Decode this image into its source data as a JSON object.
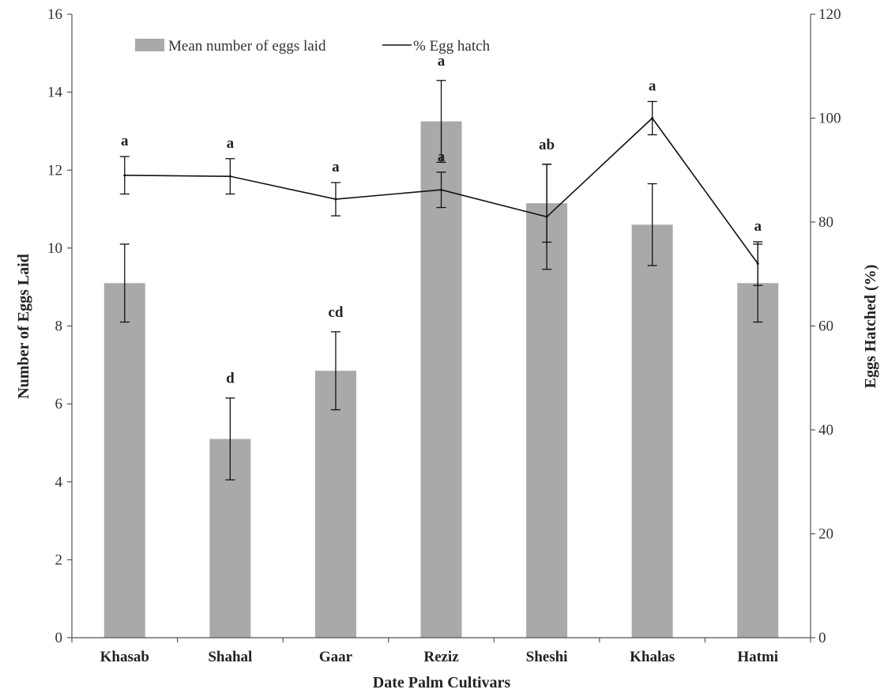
{
  "chart_data": {
    "type": "bar",
    "categories": [
      "Khasab",
      "Shahal",
      "Gaar",
      "Reziz",
      "Sheshi",
      "Khalas",
      "Hatmi"
    ],
    "series": [
      {
        "name": "Mean number of eggs laid",
        "type": "bar",
        "axis": "left",
        "values": [
          9.1,
          5.1,
          6.85,
          13.25,
          11.15,
          10.6,
          9.1
        ],
        "error": [
          1.0,
          1.05,
          1.0,
          1.05,
          1.0,
          1.05,
          1.0
        ],
        "labels": [
          "",
          "d",
          "cd",
          "a",
          "ab",
          "",
          ""
        ],
        "color": "#a9a9a9"
      },
      {
        "name": "% Egg hatch",
        "type": "line",
        "axis": "right",
        "values": [
          89,
          88.8,
          84.4,
          86.2,
          81,
          100,
          72
        ],
        "error": [
          3.6,
          3.4,
          3.2,
          3.4,
          10.1,
          3.2,
          4.2
        ],
        "labels": [
          "a",
          "a",
          "a",
          "a",
          "",
          "a",
          "a"
        ],
        "color": "#111111"
      }
    ],
    "xlabel": "Date Palm  Cultivars",
    "ylabel": "Number  of Eggs Laid",
    "y2label": "Eggs Hatched (%)",
    "ylim": [
      0,
      16
    ],
    "y2lim": [
      0,
      120
    ],
    "yticks": [
      "0",
      "2",
      "4",
      "6",
      "8",
      "10",
      "12",
      "14",
      "16"
    ],
    "y2ticks": [
      "0",
      "20",
      "40",
      "60",
      "80",
      "100",
      "120"
    ],
    "grid": false,
    "legend": "top"
  }
}
